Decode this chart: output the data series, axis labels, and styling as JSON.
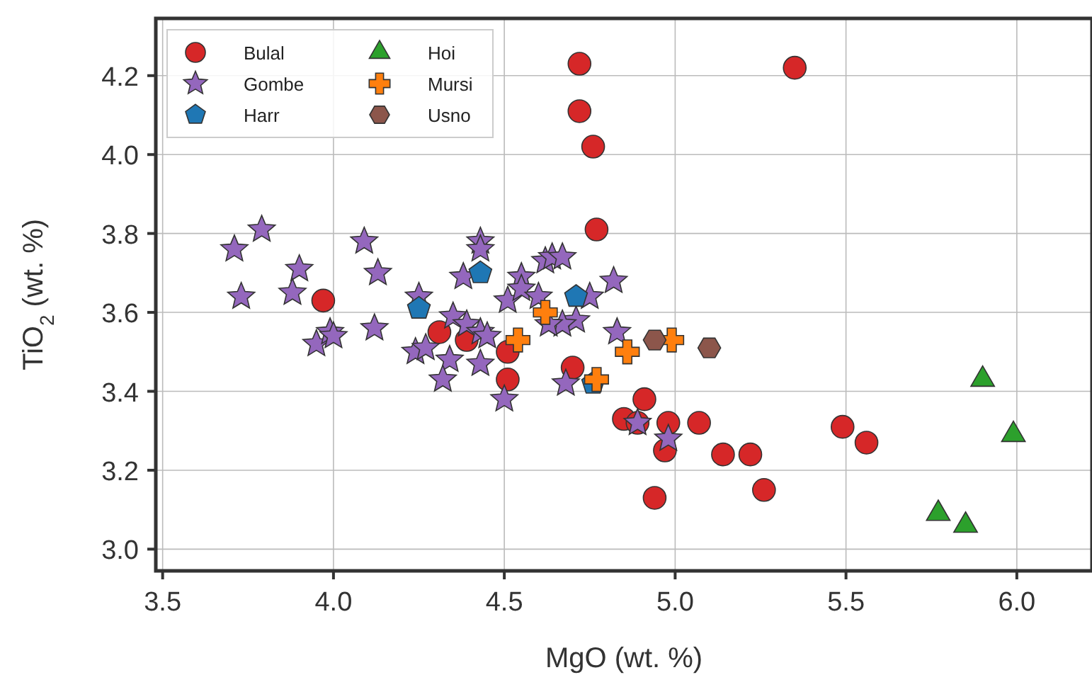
{
  "chart_data": {
    "type": "scatter",
    "xlabel": "MgO (wt. %)",
    "ylabel": "TiO$_{2}$ (wt. %)",
    "xlim": [
      3.48,
      6.22
    ],
    "xticks": [
      3.5,
      {
        "value": 4,
        "label": "4.0"
      },
      4.5,
      {
        "value": 5,
        "label": "5.0"
      },
      5.5,
      {
        "value": 6,
        "label": "6.0"
      }
    ],
    "ylim": [
      2.945,
      4.345
    ],
    "yticks": [
      {
        "value": 3,
        "label": "3.0"
      },
      3.2,
      3.4,
      3.6,
      3.8,
      {
        "value": 4,
        "label": "4.0"
      },
      4.2
    ],
    "grid": true,
    "legend": "top left",
    "series": [
      {
        "name": "Bulal",
        "color": "#d62728",
        "marker": "circle",
        "x": [
          4.72,
          4.72,
          4.76,
          5.35,
          4.77,
          3.97,
          4.31,
          4.39,
          4.51,
          4.51,
          4.7,
          4.91,
          4.85,
          4.89,
          4.98,
          4.97,
          5.07,
          5.14,
          5.22,
          5.26,
          4.94,
          5.49,
          5.56
        ],
        "values": [
          4.23,
          4.11,
          4.02,
          4.22,
          3.81,
          3.63,
          3.55,
          3.53,
          3.5,
          3.43,
          3.46,
          3.38,
          3.33,
          3.32,
          3.32,
          3.25,
          3.32,
          3.24,
          3.24,
          3.15,
          3.13,
          3.31,
          3.27
        ]
      },
      {
        "name": "Gombe",
        "color": "#9467bd",
        "marker": "star",
        "x": [
          3.71,
          3.79,
          3.73,
          3.9,
          3.88,
          4.09,
          4.13,
          4.25,
          4.38,
          4.43,
          4.43,
          4.51,
          4.55,
          4.55,
          4.6,
          4.62,
          4.64,
          4.67,
          4.82,
          4.75,
          4.71,
          4.67,
          4.83,
          3.95,
          3.99,
          4.0,
          4.12,
          4.24,
          4.27,
          4.34,
          4.32,
          4.35,
          4.39,
          4.43,
          4.45,
          4.43,
          4.5,
          4.63,
          4.68,
          4.89,
          4.98
        ],
        "values": [
          3.76,
          3.81,
          3.64,
          3.71,
          3.65,
          3.78,
          3.7,
          3.64,
          3.69,
          3.78,
          3.76,
          3.63,
          3.69,
          3.66,
          3.64,
          3.73,
          3.74,
          3.74,
          3.68,
          3.64,
          3.58,
          3.57,
          3.55,
          3.52,
          3.55,
          3.54,
          3.56,
          3.5,
          3.51,
          3.48,
          3.43,
          3.59,
          3.57,
          3.55,
          3.54,
          3.47,
          3.38,
          3.57,
          3.42,
          3.32,
          3.28
        ]
      },
      {
        "name": "Harr",
        "color": "#1f77b4",
        "x": [
          4.25,
          4.43,
          4.71,
          4.76
        ],
        "values": [
          3.61,
          3.7,
          3.64,
          3.42
        ]
      },
      {
        "name": "Hoi",
        "color": "#2ca02c",
        "marker": "triangle",
        "x": [
          5.9,
          5.99,
          5.77,
          5.85
        ],
        "values": [
          3.43,
          3.29,
          3.09,
          3.06
        ]
      },
      {
        "name": "Mursi",
        "color": "#ff7f0e",
        "marker": "cross",
        "x": [
          4.62,
          4.54,
          4.86,
          4.77,
          4.99
        ],
        "values": [
          3.6,
          3.53,
          3.5,
          3.43,
          3.53
        ]
      },
      {
        "name": "Usno",
        "color": "#8c564b",
        "x": [
          4.94,
          5.1
        ],
        "values": [
          3.53,
          3.51
        ]
      }
    ]
  }
}
